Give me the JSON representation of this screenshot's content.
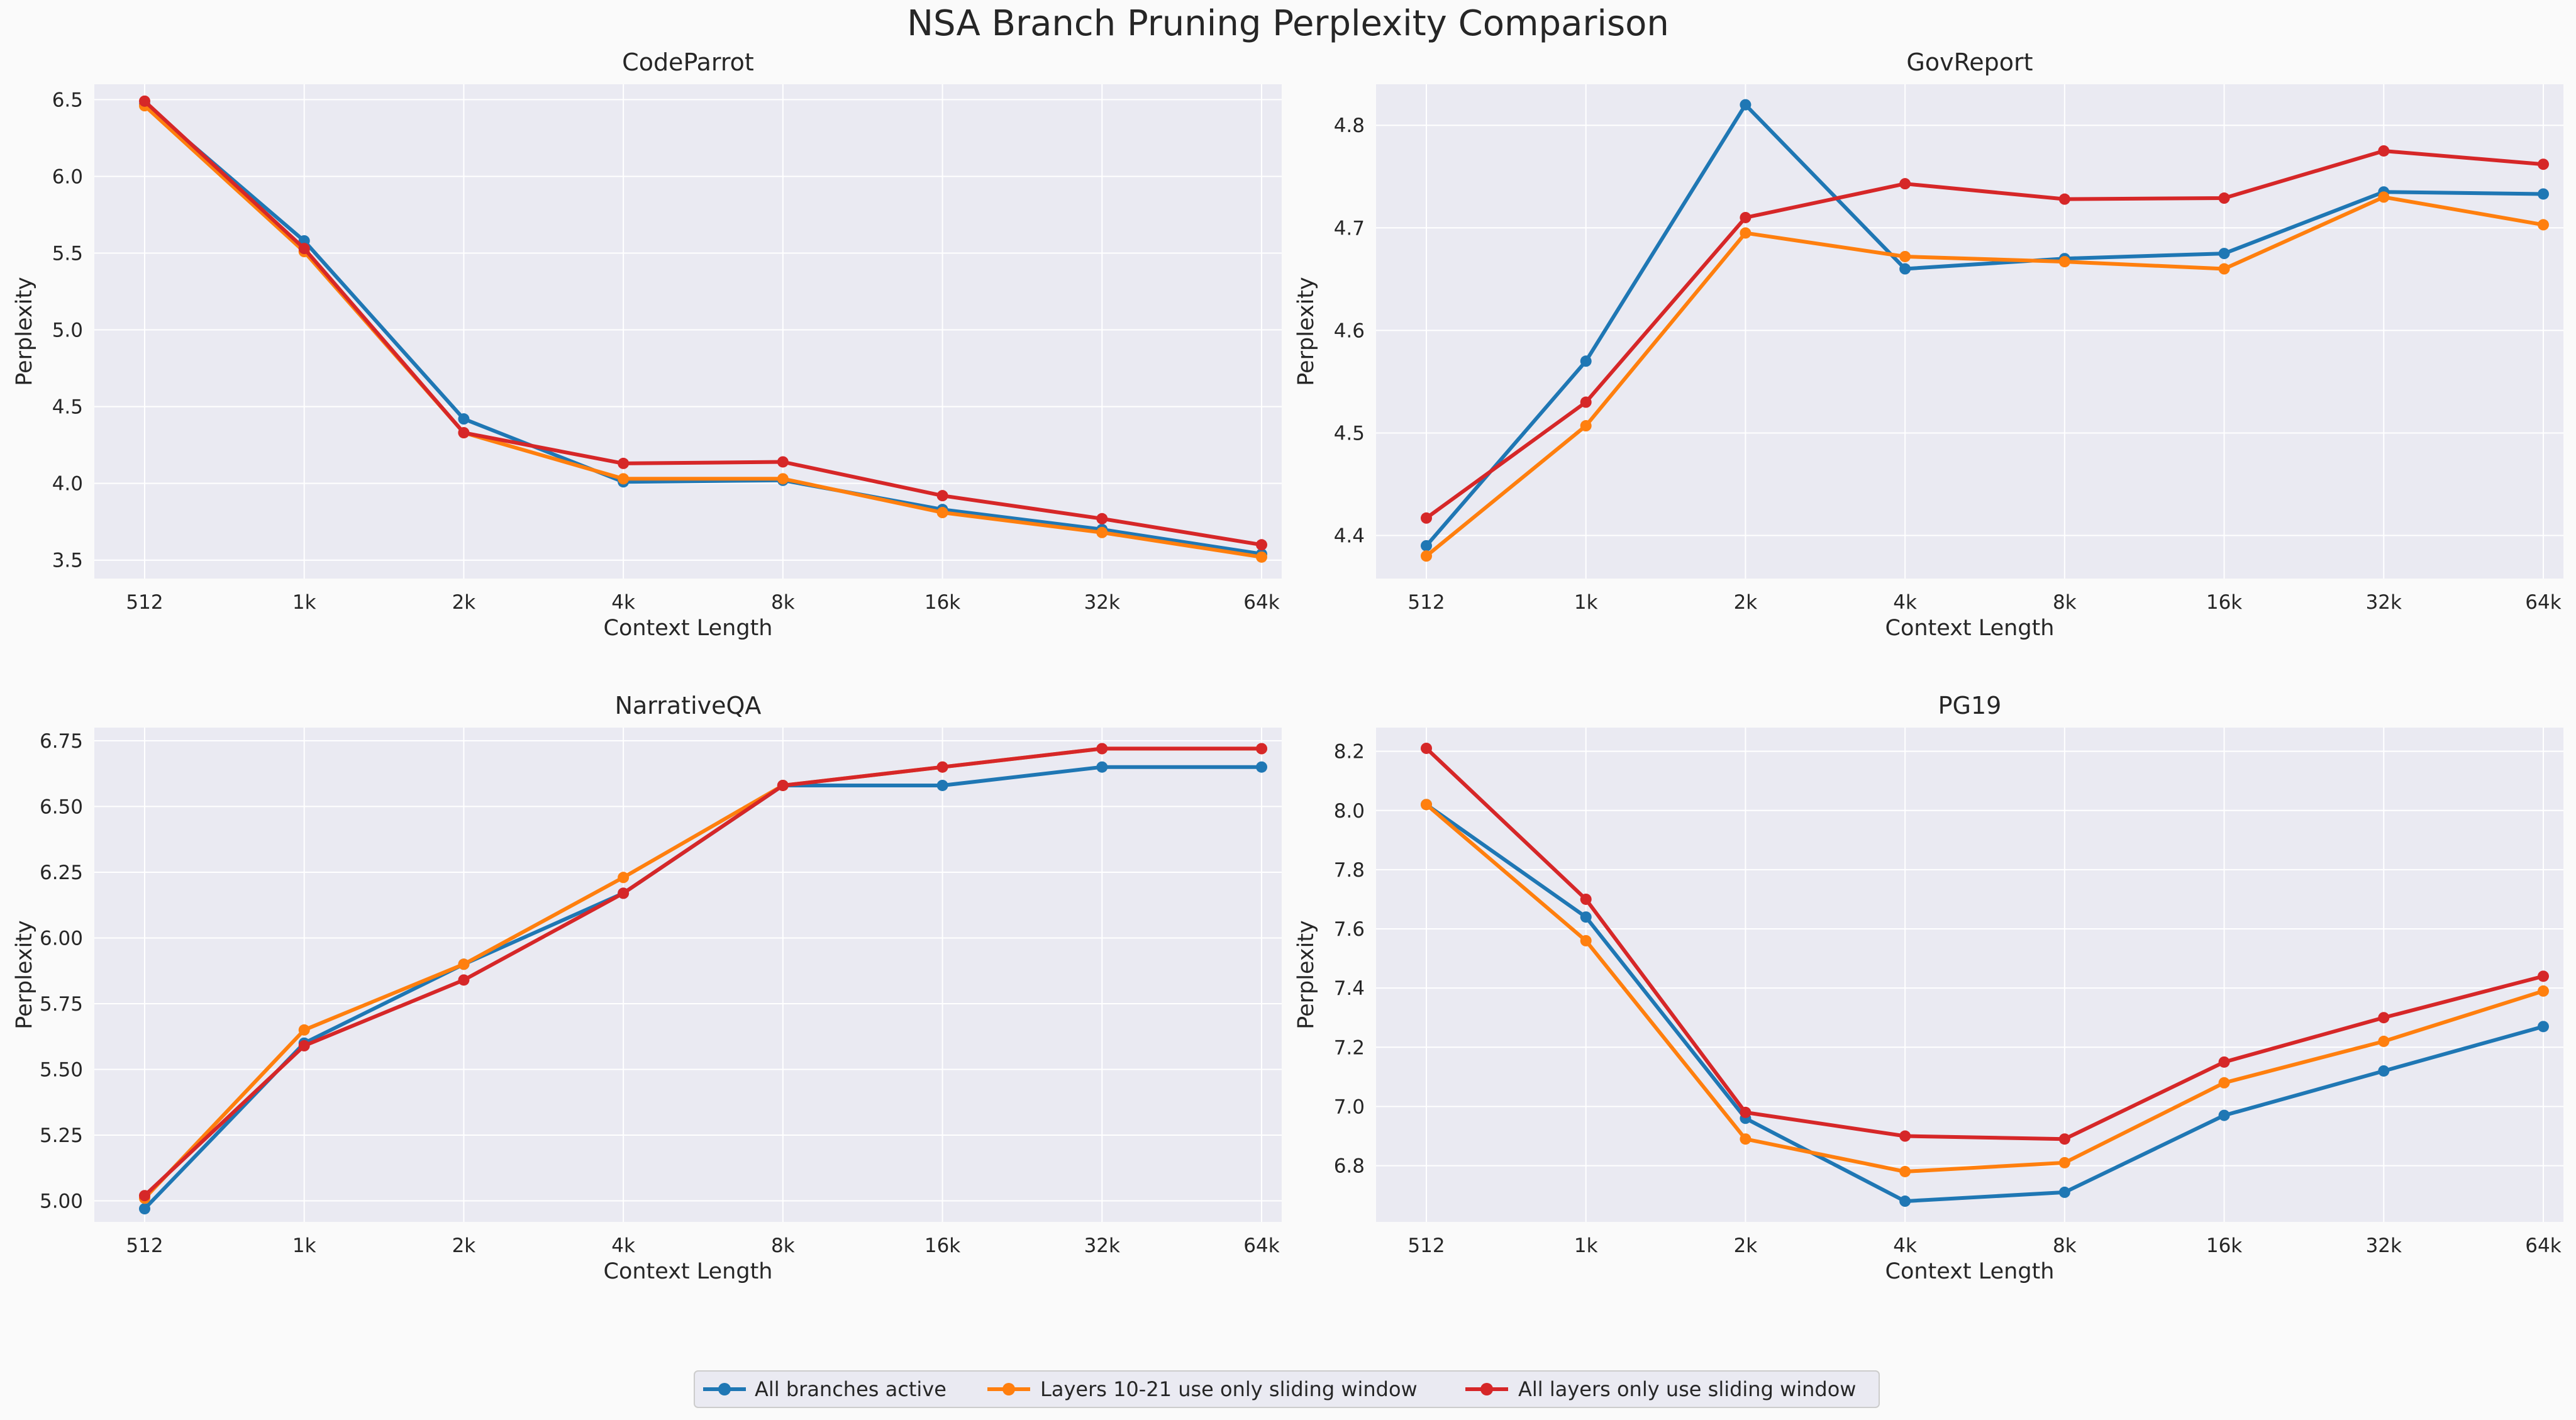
{
  "title": "NSA Branch Pruning Perplexity Comparison",
  "legend": [
    {
      "label": "All branches active",
      "color": "#1f77b4"
    },
    {
      "label": "Layers 10-21 use only sliding window",
      "color": "#ff7f0e"
    },
    {
      "label": "All layers only use sliding window",
      "color": "#d62728"
    }
  ],
  "chart_data": [
    {
      "type": "line",
      "title": "CodeParrot",
      "xlabel": "Context Length",
      "ylabel": "Perplexity",
      "categories": [
        "512",
        "1k",
        "2k",
        "4k",
        "8k",
        "16k",
        "32k",
        "64k"
      ],
      "ylim": [
        3.38,
        6.6
      ],
      "yticks": [
        3.5,
        4.0,
        4.5,
        5.0,
        5.5,
        6.0,
        6.5
      ],
      "ytick_labels": [
        "3.5",
        "4.0",
        "4.5",
        "5.0",
        "5.5",
        "6.0",
        "6.5"
      ],
      "series": [
        {
          "name": "All branches active",
          "values": [
            6.47,
            5.58,
            4.42,
            4.01,
            4.02,
            3.83,
            3.7,
            3.54
          ]
        },
        {
          "name": "Layers 10-21 use only sliding window",
          "values": [
            6.46,
            5.51,
            4.33,
            4.03,
            4.03,
            3.81,
            3.68,
            3.52
          ]
        },
        {
          "name": "All layers only use sliding window",
          "values": [
            6.49,
            5.53,
            4.33,
            4.13,
            4.14,
            3.92,
            3.77,
            3.6
          ]
        }
      ]
    },
    {
      "type": "line",
      "title": "GovReport",
      "xlabel": "Context Length",
      "ylabel": "Perplexity",
      "categories": [
        "512",
        "1k",
        "2k",
        "4k",
        "8k",
        "16k",
        "32k",
        "64k"
      ],
      "ylim": [
        4.358,
        4.84
      ],
      "yticks": [
        4.4,
        4.5,
        4.6,
        4.7,
        4.8
      ],
      "ytick_labels": [
        "4.4",
        "4.5",
        "4.6",
        "4.7",
        "4.8"
      ],
      "series": [
        {
          "name": "All branches active",
          "values": [
            4.39,
            4.57,
            4.82,
            4.66,
            4.67,
            4.675,
            4.735,
            4.733
          ]
        },
        {
          "name": "Layers 10-21 use only sliding window",
          "values": [
            4.38,
            4.507,
            4.695,
            4.672,
            4.667,
            4.66,
            4.73,
            4.703
          ]
        },
        {
          "name": "All layers only use sliding window",
          "values": [
            4.417,
            4.53,
            4.71,
            4.743,
            4.728,
            4.729,
            4.775,
            4.762
          ]
        }
      ]
    },
    {
      "type": "line",
      "title": "NarrativeQA",
      "xlabel": "Context Length",
      "ylabel": "Perplexity",
      "categories": [
        "512",
        "1k",
        "2k",
        "4k",
        "8k",
        "16k",
        "32k",
        "64k"
      ],
      "ylim": [
        4.92,
        6.8
      ],
      "yticks": [
        5.0,
        5.25,
        5.5,
        5.75,
        6.0,
        6.25,
        6.5,
        6.75
      ],
      "ytick_labels": [
        "5.00",
        "5.25",
        "5.50",
        "5.75",
        "6.00",
        "6.25",
        "6.50",
        "6.75"
      ],
      "series": [
        {
          "name": "All branches active",
          "values": [
            4.97,
            5.6,
            5.9,
            6.17,
            6.58,
            6.58,
            6.65,
            6.65
          ]
        },
        {
          "name": "Layers 10-21 use only sliding window",
          "values": [
            5.01,
            5.65,
            5.9,
            6.23,
            6.58,
            6.65,
            6.72,
            6.72
          ]
        },
        {
          "name": "All layers only use sliding window",
          "values": [
            5.02,
            5.59,
            5.84,
            6.17,
            6.58,
            6.65,
            6.72,
            6.72
          ]
        }
      ]
    },
    {
      "type": "line",
      "title": "PG19",
      "xlabel": "Context Length",
      "ylabel": "Perplexity",
      "categories": [
        "512",
        "1k",
        "2k",
        "4k",
        "8k",
        "16k",
        "32k",
        "64k"
      ],
      "ylim": [
        6.61,
        8.28
      ],
      "yticks": [
        6.8,
        7.0,
        7.2,
        7.4,
        7.6,
        7.8,
        8.0,
        8.2
      ],
      "ytick_labels": [
        "6.8",
        "7.0",
        "7.2",
        "7.4",
        "7.6",
        "7.8",
        "8.0",
        "8.2"
      ],
      "series": [
        {
          "name": "All branches active",
          "values": [
            8.02,
            7.64,
            6.96,
            6.68,
            6.71,
            6.97,
            7.12,
            7.27
          ]
        },
        {
          "name": "Layers 10-21 use only sliding window",
          "values": [
            8.02,
            7.56,
            6.89,
            6.78,
            6.81,
            7.08,
            7.22,
            7.39
          ]
        },
        {
          "name": "All layers only use sliding window",
          "values": [
            8.21,
            7.7,
            6.98,
            6.9,
            6.89,
            7.15,
            7.3,
            7.44
          ]
        }
      ]
    }
  ]
}
